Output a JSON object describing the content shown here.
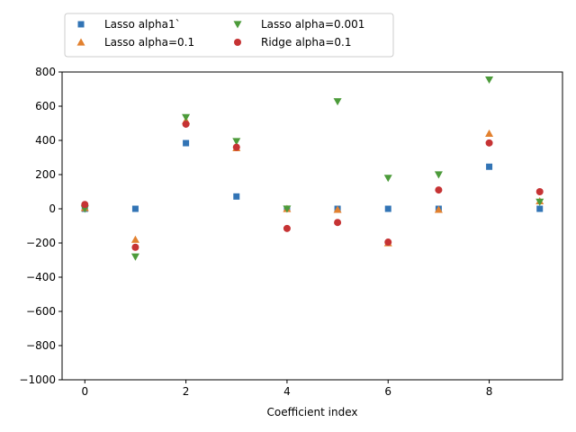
{
  "chart_data": {
    "type": "scatter",
    "title": "",
    "xlabel": "Coefficient index",
    "ylabel": "",
    "xlim": [
      -0.45,
      9.45
    ],
    "ylim": [
      -1000,
      800
    ],
    "xticks": [
      0,
      2,
      4,
      6,
      8
    ],
    "yticks": [
      -1000,
      -800,
      -600,
      -400,
      -200,
      0,
      200,
      400,
      600,
      800
    ],
    "grid": false,
    "legend_position": "top-left-outside",
    "legend_columns": 2,
    "x": [
      0,
      1,
      2,
      3,
      4,
      5,
      6,
      7,
      8,
      9
    ],
    "series": [
      {
        "name": "Lasso alpha1`",
        "marker": "square",
        "color": "#3274b5",
        "values": [
          0,
          0,
          384,
          72,
          0,
          0,
          0,
          0,
          246,
          0
        ]
      },
      {
        "name": "Lasso alpha=0.1",
        "marker": "triangle-up",
        "color": "#e2812f",
        "values": [
          5,
          -180,
          515,
          356,
          0,
          -5,
          -200,
          -5,
          440,
          45
        ]
      },
      {
        "name": "Lasso alpha=0.001",
        "marker": "triangle-down",
        "color": "#4c9b3a",
        "values": [
          0,
          -280,
          535,
          395,
          0,
          628,
          180,
          200,
          755,
          40
        ]
      },
      {
        "name": "Ridge alpha=0.1",
        "marker": "circle",
        "color": "#c63334",
        "values": [
          25,
          -225,
          495,
          360,
          -115,
          -80,
          -195,
          110,
          385,
          100
        ]
      }
    ]
  }
}
